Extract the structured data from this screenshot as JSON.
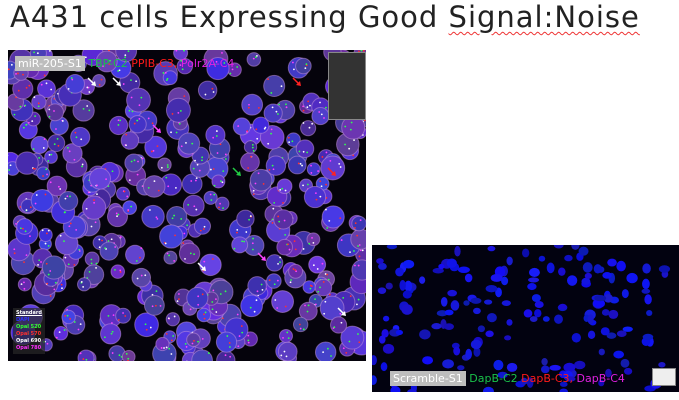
{
  "title": {
    "main": "A431 cells Expressing Good ",
    "underlined": "Signal:Noise"
  },
  "main_image": {
    "sample": "miR-205-S1",
    "channels": [
      {
        "label": "TBP-C2",
        "color": "#19c24a"
      },
      {
        "label": "PPIB-C3,",
        "color": "#ff1a1a"
      },
      {
        "label": "Polr2A-C4",
        "color": "#e020e0"
      }
    ],
    "legend": [
      {
        "label": "Standard",
        "color": "#ffffff"
      },
      {
        "label": "DAPI",
        "color": "#3030ff"
      },
      {
        "label": "Opal 520",
        "color": "#30ff30"
      },
      {
        "label": "Opal 570",
        "color": "#ff3030"
      },
      {
        "label": "Opal 690",
        "color": "#ffffff"
      },
      {
        "label": "Opal 780",
        "color": "#ff30ff"
      }
    ]
  },
  "inset_image": {
    "sample": "Scramble-S1",
    "channels": [
      {
        "label": "DapB-C2",
        "color": "#19c24a"
      },
      {
        "label": "DapB-C3,",
        "color": "#ff1a1a"
      },
      {
        "label": "DapB-C4",
        "color": "#e020e0"
      }
    ]
  }
}
